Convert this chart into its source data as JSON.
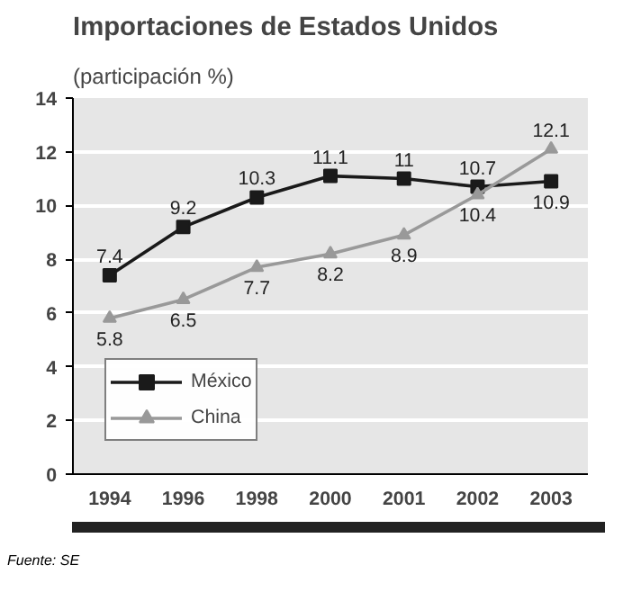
{
  "chart_data": {
    "type": "line",
    "title": "Importaciones de Estados Unidos",
    "subtitle": "(participación %)",
    "categories": [
      "1994",
      "1996",
      "1998",
      "2000",
      "2001",
      "2002",
      "2003"
    ],
    "ylim": [
      0,
      14
    ],
    "yticks": [
      0,
      2,
      4,
      6,
      8,
      10,
      12,
      14
    ],
    "grid": "y",
    "legend": "bottom left",
    "line_style": "solid",
    "data_labels": true,
    "series": [
      {
        "name": "México",
        "color": "#1a1a1a",
        "marker": "square",
        "values": [
          7.4,
          9.2,
          10.3,
          11.1,
          11,
          10.7,
          10.9
        ]
      },
      {
        "name": "China",
        "color": "#999999",
        "marker": "triangle",
        "values": [
          5.8,
          6.5,
          7.7,
          8.2,
          8.9,
          10.4,
          12.1
        ]
      }
    ],
    "annotations": [
      "Fuente: SE"
    ]
  }
}
